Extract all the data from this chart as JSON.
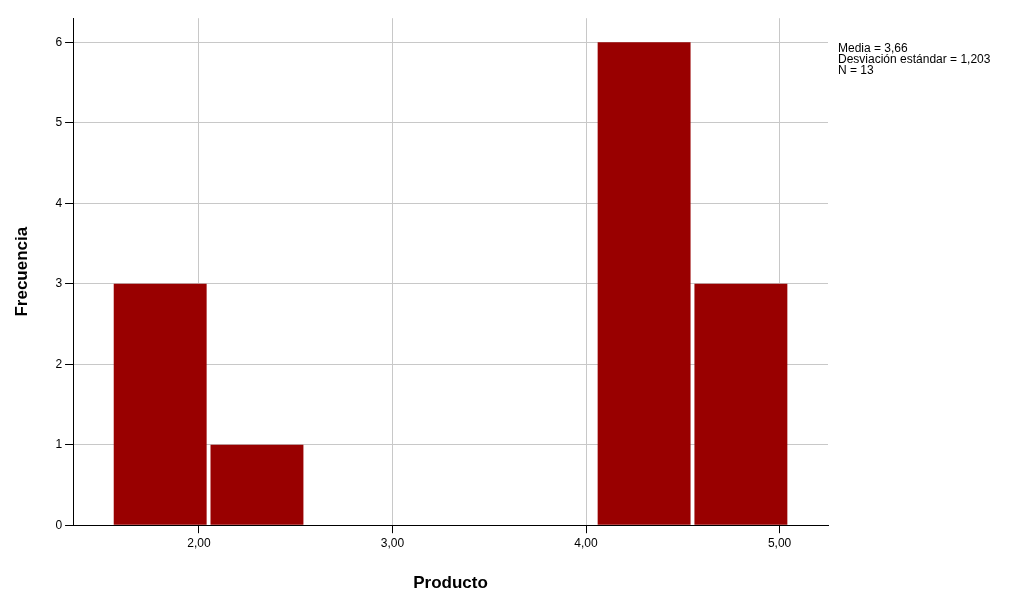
{
  "chart_data": {
    "type": "histogram",
    "xlabel": "Producto",
    "ylabel": "Frecuencia",
    "bins": [
      1.55,
      2.05,
      2.55,
      3.05,
      3.55,
      4.05,
      4.55,
      5.05
    ],
    "values": [
      3,
      1,
      0,
      0,
      0,
      6,
      3
    ],
    "color": "#990000",
    "xlim": [
      1.35,
      5.25
    ],
    "xticks": [
      {
        "value": 2,
        "label": "2,00"
      },
      {
        "value": 3,
        "label": "3,00"
      },
      {
        "value": 4,
        "label": "4,00"
      },
      {
        "value": 5,
        "label": "5,00"
      }
    ],
    "ylim": [
      0,
      6.3
    ],
    "yticks": [
      0,
      1,
      2,
      3,
      4,
      5,
      6
    ],
    "grid": true,
    "annotations": [
      "Media = 3,66",
      "Desviación estándar = 1,203",
      "N = 13"
    ]
  }
}
